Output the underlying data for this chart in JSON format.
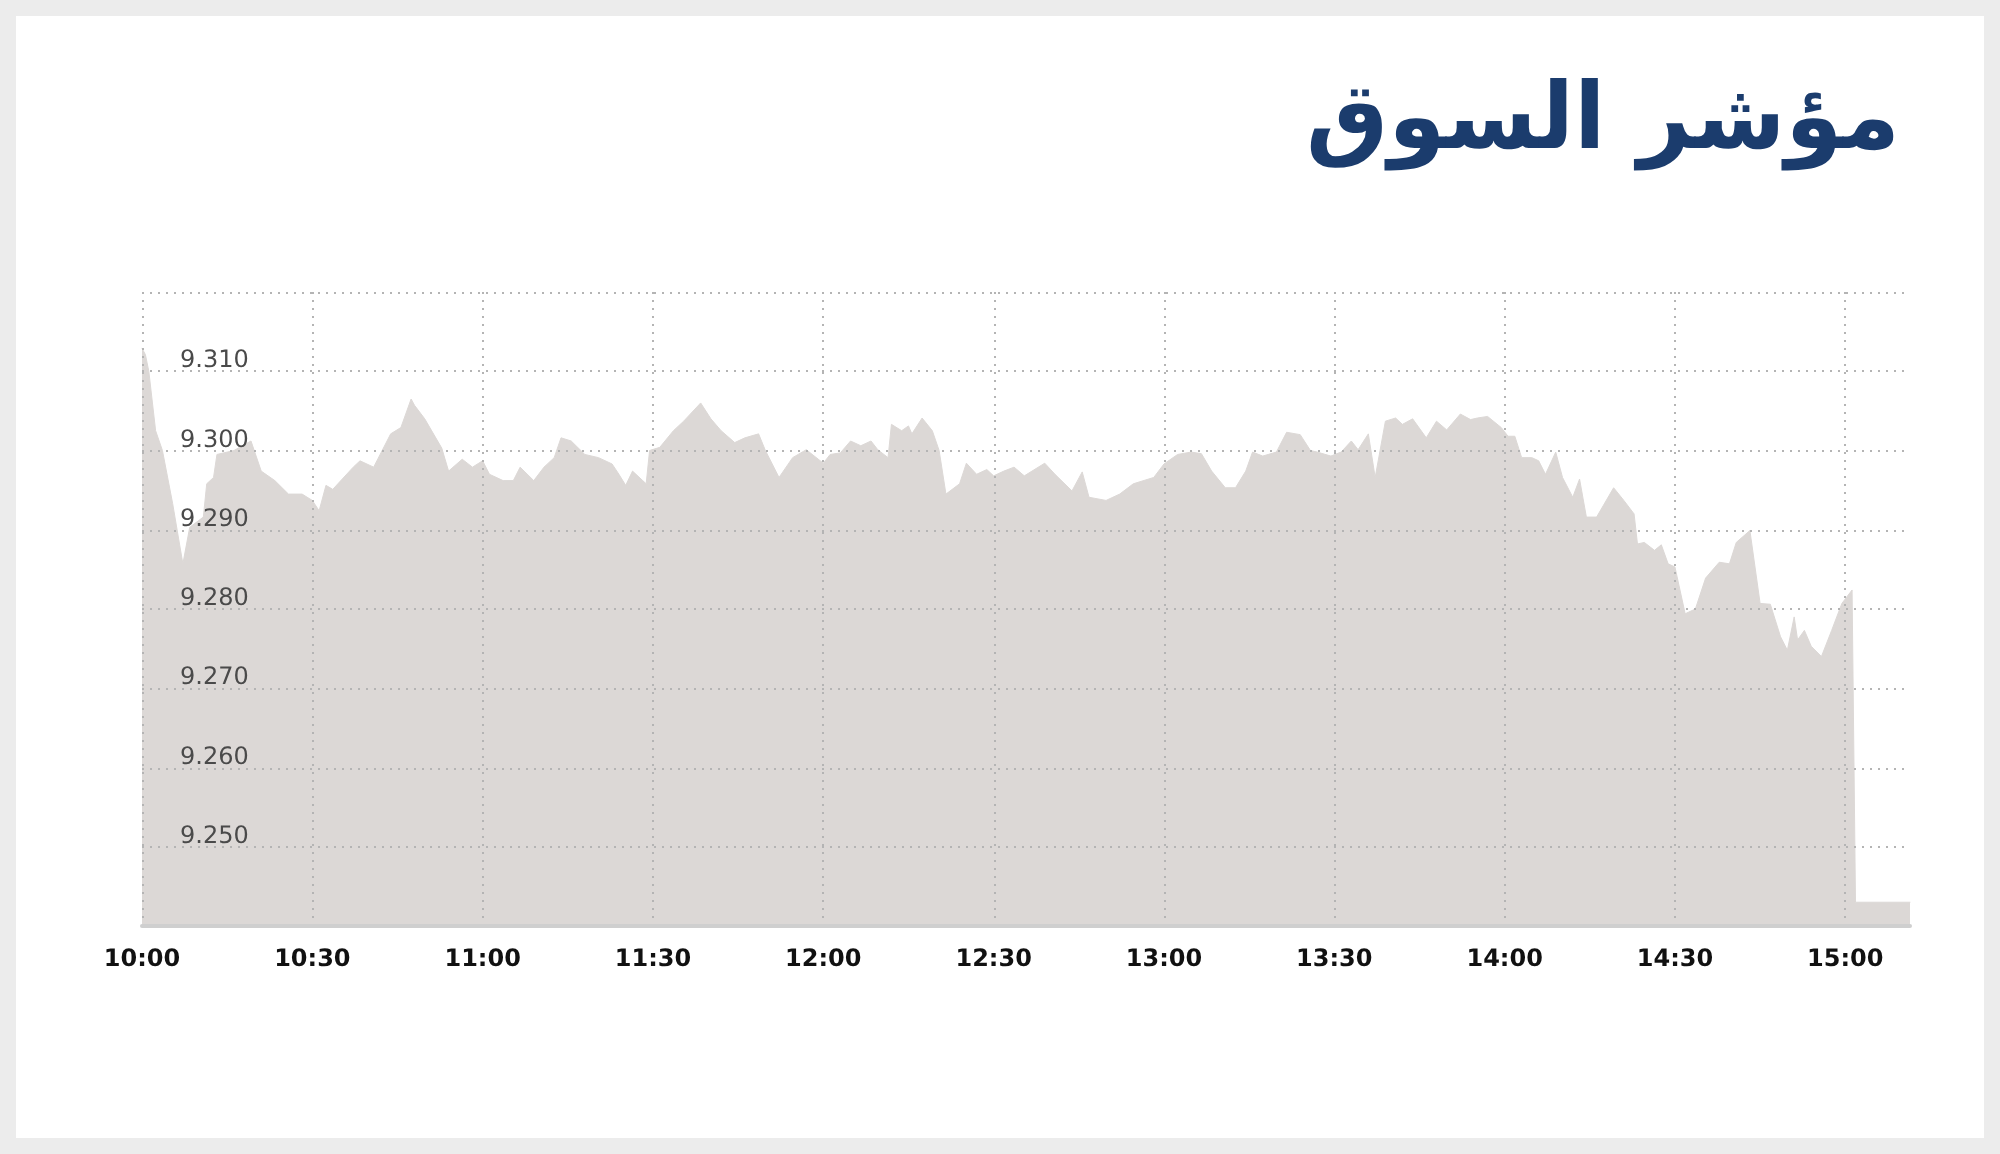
{
  "chart_data": {
    "type": "area",
    "title": "مؤشر السوق",
    "x": [
      10,
      10.01,
      10.02,
      10.04,
      10.06,
      10.09,
      10.12,
      10.14,
      10.18,
      10.19,
      10.21,
      10.22,
      10.27,
      10.32,
      10.35,
      10.39,
      10.43,
      10.47,
      10.5,
      10.52,
      10.54,
      10.56,
      10.62,
      10.64,
      10.68,
      10.73,
      10.76,
      10.79,
      10.8,
      10.83,
      10.88,
      10.9,
      10.94,
      10.97,
      11,
      11.02,
      11.06,
      11.09,
      11.11,
      11.15,
      11.18,
      11.21,
      11.23,
      11.26,
      11.3,
      11.34,
      11.38,
      11.4,
      11.42,
      11.44,
      11.47,
      11.48,
      11.49,
      11.52,
      11.56,
      11.59,
      11.64,
      11.67,
      11.7,
      11.74,
      11.77,
      11.81,
      11.83,
      11.87,
      11.91,
      11.95,
      12,
      12.02,
      12.05,
      12.08,
      12.11,
      12.14,
      12.16,
      12.19,
      12.2,
      12.23,
      12.25,
      12.26,
      12.29,
      12.32,
      12.34,
      12.36,
      12.4,
      12.42,
      12.45,
      12.48,
      12.5,
      12.53,
      12.56,
      12.59,
      12.65,
      12.68,
      12.73,
      12.76,
      12.78,
      12.83,
      12.87,
      12.91,
      12.97,
      13,
      13.04,
      13.08,
      13.11,
      13.14,
      13.18,
      13.21,
      13.24,
      13.26,
      13.29,
      13.33,
      13.36,
      13.4,
      13.43,
      13.45,
      13.49,
      13.52,
      13.55,
      13.57,
      13.6,
      13.62,
      13.65,
      13.68,
      13.7,
      13.73,
      13.77,
      13.8,
      13.83,
      13.87,
      13.9,
      13.92,
      13.95,
      13.99,
      14.01,
      14.03,
      14.05,
      14.08,
      14.1,
      14.12,
      14.15,
      14.17,
      14.2,
      14.22,
      14.24,
      14.27,
      14.32,
      14.35,
      14.38,
      14.39,
      14.41,
      14.44,
      14.46,
      14.48,
      14.5,
      14.53,
      14.56,
      14.59,
      14.63,
      14.66,
      14.68,
      14.72,
      14.75,
      14.78,
      14.81,
      14.83,
      14.85,
      14.86,
      14.88,
      14.9,
      14.93,
      14.96,
      14.99,
      15.02,
      15.03,
      15.19
    ],
    "values": [
      9.3129,
      9.3121,
      9.31,
      9.3025,
      9.3,
      9.2933,
      9.2857,
      9.2903,
      9.2916,
      9.2958,
      9.2966,
      9.2995,
      9.3,
      9.3012,
      9.2974,
      9.2962,
      9.2945,
      9.2945,
      9.2937,
      9.2924,
      9.2956,
      9.2951,
      9.2979,
      9.2987,
      9.2979,
      9.3021,
      9.3029,
      9.3065,
      9.3057,
      9.304,
      9.3003,
      9.2974,
      9.2989,
      9.2979,
      9.2987,
      9.297,
      9.2962,
      9.2962,
      9.2979,
      9.2962,
      9.2979,
      9.2991,
      9.3016,
      9.3012,
      9.2995,
      9.2991,
      9.2983,
      9.297,
      9.2956,
      9.2974,
      9.2962,
      9.2958,
      9.3,
      9.3004,
      9.3025,
      9.3037,
      9.306,
      9.304,
      9.3025,
      9.301,
      9.3016,
      9.3021,
      9.3,
      9.2966,
      9.2991,
      9.3001,
      9.2984,
      9.2995,
      9.2997,
      9.3012,
      9.3006,
      9.3012,
      9.3001,
      9.2991,
      9.3033,
      9.3025,
      9.3031,
      9.3021,
      9.3041,
      9.3025,
      9.3,
      9.2945,
      9.2958,
      9.2984,
      9.297,
      9.2976,
      9.2968,
      9.2974,
      9.2979,
      9.2968,
      9.2984,
      9.297,
      9.2949,
      9.2973,
      9.2941,
      9.2937,
      9.2945,
      9.2958,
      9.2966,
      9.2983,
      9.2995,
      9.2998,
      9.2996,
      9.2974,
      9.2953,
      9.2953,
      9.2974,
      9.2998,
      9.2993,
      9.2998,
      9.3023,
      9.302,
      9.3,
      9.2998,
      9.2993,
      9.2998,
      9.3012,
      9.3001,
      9.3021,
      9.2966,
      9.3037,
      9.3041,
      9.3033,
      9.304,
      9.3016,
      9.3037,
      9.3026,
      9.3046,
      9.3039,
      9.3041,
      9.3043,
      9.3029,
      9.3018,
      9.3018,
      9.2991,
      9.2991,
      9.2987,
      9.297,
      9.2998,
      9.2966,
      9.2941,
      9.2964,
      9.2916,
      9.2916,
      9.2953,
      9.2937,
      9.292,
      9.2882,
      9.2884,
      9.2874,
      9.2881,
      9.2857,
      9.2853,
      9.2794,
      9.28,
      9.2839,
      9.2859,
      9.2857,
      9.2884,
      9.2899,
      9.2807,
      9.2806,
      9.2765,
      9.2748,
      9.279,
      9.2761,
      9.2773,
      9.2753,
      9.274,
      9.2773,
      9.2807,
      9.2824,
      9.243,
      9.243
    ],
    "color": "#dcd8d6",
    "xlim": [
      10,
      15.19
    ],
    "xticks": [
      {
        "value": 10,
        "label": "10:00"
      },
      {
        "value": 10.5,
        "label": "10:30"
      },
      {
        "value": 11,
        "label": "11:00"
      },
      {
        "value": 11.5,
        "label": "11:30"
      },
      {
        "value": 12,
        "label": "12:00"
      },
      {
        "value": 12.5,
        "label": "12:30"
      },
      {
        "value": 13,
        "label": "13:00"
      },
      {
        "value": 13.5,
        "label": "13:30"
      },
      {
        "value": 14,
        "label": "14:00"
      },
      {
        "value": 14.5,
        "label": "14:30"
      },
      {
        "value": 15,
        "label": "15:00"
      }
    ],
    "ylim": [
      9.24,
      9.32
    ],
    "yticks": [
      {
        "value": 9.25,
        "label": "9.250"
      },
      {
        "value": 9.26,
        "label": "9.260"
      },
      {
        "value": 9.27,
        "label": "9.270"
      },
      {
        "value": 9.28,
        "label": "9.280"
      },
      {
        "value": 9.29,
        "label": "9.290"
      },
      {
        "value": 9.3,
        "label": "9.300"
      },
      {
        "value": 9.31,
        "label": "9.310"
      },
      {
        "value": 9.32,
        "label": null
      }
    ],
    "grid": true
  }
}
